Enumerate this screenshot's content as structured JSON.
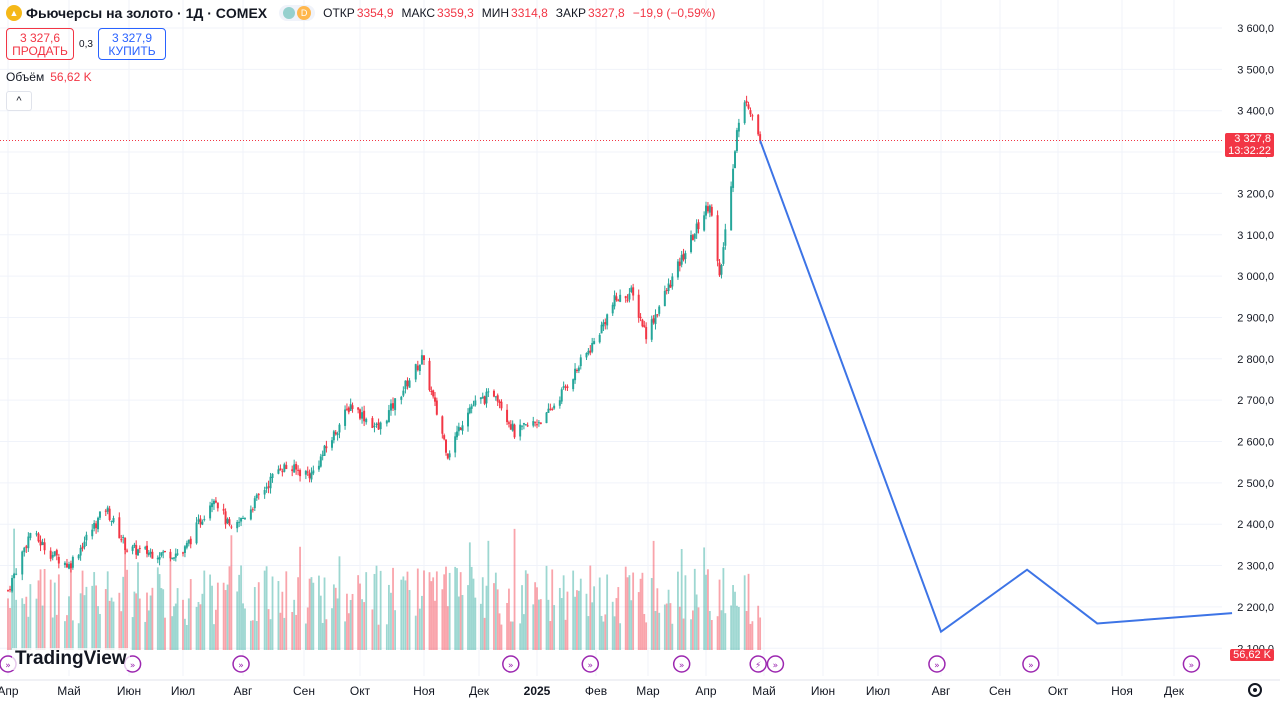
{
  "header": {
    "title": "Фьючерсы на золото · 1Д · COMEX",
    "icon_letter": "▲",
    "interval_badge": "D",
    "ohlc": [
      {
        "label": "ОТКР",
        "value": "3354,9"
      },
      {
        "label": "МАКС",
        "value": "3359,3"
      },
      {
        "label": "МИН",
        "value": "3314,8"
      },
      {
        "label": "ЗАКР",
        "value": "3327,8"
      }
    ],
    "change": "−19,9 (−0,59%)"
  },
  "trade": {
    "sell_price": "3 327,6",
    "sell_label": "ПРОДАТЬ",
    "spread": "0,3",
    "buy_price": "3 327,9",
    "buy_label": "КУПИТЬ"
  },
  "volume": {
    "label": "Объём",
    "value": "56,62 K"
  },
  "collapse_glyph": "^",
  "price_tag": {
    "price": "3 327,8",
    "countdown": "13:32:22"
  },
  "volume_tag": "56,62 K",
  "logo": "TradingView",
  "colors": {
    "up": "#26a69a",
    "down": "#f23645",
    "forecast": "#3d74e6",
    "grid": "#f0f3fa"
  },
  "chart_data": {
    "type": "candlestick",
    "title": "Фьючерсы на золото · 1Д · COMEX",
    "ylim": [
      2100,
      3650
    ],
    "y_ticks": [
      "3 600,0",
      "3 500,0",
      "3 400,0",
      "3 300,0",
      "3 200,0",
      "3 100,0",
      "3 000,0",
      "2 900,0",
      "2 800,0",
      "2 700,0",
      "2 600,0",
      "2 500,0",
      "2 400,0",
      "2 300,0",
      "2 200,0",
      "2 100,0"
    ],
    "x_ticks": [
      "Апр",
      "Май",
      "Июн",
      "Июл",
      "Авг",
      "Сен",
      "Окт",
      "Ноя",
      "Дек",
      "2025",
      "Фев",
      "Мар",
      "Апр",
      "Май",
      "Июн",
      "Июл",
      "Авг",
      "Сен",
      "Окт",
      "Ноя",
      "Дек"
    ],
    "price_path": [
      {
        "date": "2024-04-01",
        "close": 2240
      },
      {
        "date": "2024-04-12",
        "close": 2380
      },
      {
        "date": "2024-04-22",
        "close": 2330
      },
      {
        "date": "2024-05-01",
        "close": 2300
      },
      {
        "date": "2024-05-20",
        "close": 2440
      },
      {
        "date": "2024-05-31",
        "close": 2340
      },
      {
        "date": "2024-06-15",
        "close": 2330
      },
      {
        "date": "2024-07-01",
        "close": 2330
      },
      {
        "date": "2024-07-17",
        "close": 2470
      },
      {
        "date": "2024-07-26",
        "close": 2380
      },
      {
        "date": "2024-08-05",
        "close": 2440
      },
      {
        "date": "2024-08-20",
        "close": 2540
      },
      {
        "date": "2024-09-05",
        "close": 2520
      },
      {
        "date": "2024-09-26",
        "close": 2690
      },
      {
        "date": "2024-10-10",
        "close": 2630
      },
      {
        "date": "2024-10-31",
        "close": 2800
      },
      {
        "date": "2024-11-14",
        "close": 2570
      },
      {
        "date": "2024-11-25",
        "close": 2680
      },
      {
        "date": "2024-12-10",
        "close": 2720
      },
      {
        "date": "2024-12-20",
        "close": 2620
      },
      {
        "date": "2025-01-06",
        "close": 2660
      },
      {
        "date": "2025-01-31",
        "close": 2840
      },
      {
        "date": "2025-02-11",
        "close": 2940
      },
      {
        "date": "2025-02-20",
        "close": 2960
      },
      {
        "date": "2025-02-28",
        "close": 2860
      },
      {
        "date": "2025-03-20",
        "close": 3050
      },
      {
        "date": "2025-04-03",
        "close": 3180
      },
      {
        "date": "2025-04-08",
        "close": 2990
      },
      {
        "date": "2025-04-17",
        "close": 3350
      },
      {
        "date": "2025-04-22",
        "close": 3430
      },
      {
        "date": "2025-04-29",
        "close": 3328
      }
    ],
    "volume_scale_max": 400000,
    "forecast_line": [
      {
        "date": "2025-04-29",
        "value": 3327.8
      },
      {
        "date": "2025-08-01",
        "value": 2140
      },
      {
        "date": "2025-09-15",
        "value": 2290
      },
      {
        "date": "2025-10-20",
        "value": 2160
      },
      {
        "date": "2025-12-31",
        "value": 2185
      }
    ],
    "event_markers": [
      "2024-04-01",
      "2024-06-03",
      "2024-07-31",
      "2024-12-18",
      "2025-01-29",
      "2025-03-19",
      "2025-04-28",
      "2025-05-07",
      "2025-07-30",
      "2025-09-17",
      "2025-12-10"
    ]
  }
}
